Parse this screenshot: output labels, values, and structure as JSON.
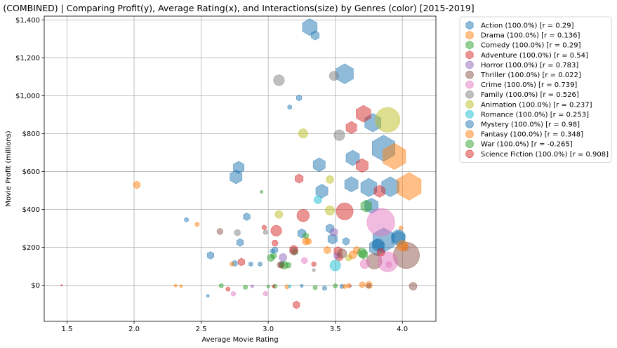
{
  "chart_data": {
    "type": "scatter",
    "title": "(COMBINED) | Comparing Profit(y), Average Rating(x), and Interactions(size) by Genres (color) [2015-2019]",
    "xlabel": "Average Movie Rating",
    "ylabel": "Movie Profit (millions)",
    "xlim": [
      1.33,
      4.25
    ],
    "ylim": [
      -190,
      1420
    ],
    "x_ticks": [
      {
        "value": 1.5,
        "label": "1.5"
      },
      {
        "value": 2.0,
        "label": "2.0"
      },
      {
        "value": 2.5,
        "label": "2.5"
      },
      {
        "value": 3.0,
        "label": "3.0"
      },
      {
        "value": 3.5,
        "label": "3.5"
      },
      {
        "value": 4.0,
        "label": "4.0"
      }
    ],
    "y_ticks": [
      {
        "value": 0,
        "label": "$0"
      },
      {
        "value": 200,
        "label": "$200"
      },
      {
        "value": 400,
        "label": "$400"
      },
      {
        "value": 600,
        "label": "$600"
      },
      {
        "value": 800,
        "label": "$800"
      },
      {
        "value": 1000,
        "label": "$1,000"
      },
      {
        "value": 1200,
        "label": "$1,200"
      },
      {
        "value": 1400,
        "label": "$1,400"
      }
    ],
    "grid": true,
    "legend_position": "outside-right",
    "series": [
      {
        "name": "Action (100.0%) [r = 0.29]",
        "color": "#1f77b4",
        "marker": "hexagon",
        "points": [
          {
            "x": 3.31,
            "y": 1362,
            "s": 11
          },
          {
            "x": 3.35,
            "y": 1318,
            "s": 6
          },
          {
            "x": 3.57,
            "y": 1116,
            "s": 13
          },
          {
            "x": 3.16,
            "y": 940,
            "s": 3
          },
          {
            "x": 3.23,
            "y": 989,
            "s": 4
          },
          {
            "x": 3.78,
            "y": 858,
            "s": 12
          },
          {
            "x": 3.86,
            "y": 723,
            "s": 17
          },
          {
            "x": 3.63,
            "y": 672,
            "s": 10
          },
          {
            "x": 3.38,
            "y": 636,
            "s": 9
          },
          {
            "x": 2.78,
            "y": 622,
            "s": 8
          },
          {
            "x": 2.76,
            "y": 572,
            "s": 9
          },
          {
            "x": 3.62,
            "y": 533,
            "s": 10
          },
          {
            "x": 3.75,
            "y": 516,
            "s": 12
          },
          {
            "x": 3.91,
            "y": 520,
            "s": 13
          },
          {
            "x": 3.4,
            "y": 497,
            "s": 9
          },
          {
            "x": 3.77,
            "y": 420,
            "s": 10
          },
          {
            "x": 2.84,
            "y": 362,
            "s": 5
          },
          {
            "x": 2.39,
            "y": 346,
            "s": 3
          },
          {
            "x": 3.46,
            "y": 300,
            "s": 6
          },
          {
            "x": 3.25,
            "y": 274,
            "s": 6
          },
          {
            "x": 3.48,
            "y": 245,
            "s": 7
          },
          {
            "x": 3.86,
            "y": 238,
            "s": 16
          },
          {
            "x": 3.97,
            "y": 247,
            "s": 10
          },
          {
            "x": 2.79,
            "y": 226,
            "s": 5
          },
          {
            "x": 3.58,
            "y": 232,
            "s": 5
          },
          {
            "x": 3.81,
            "y": 200,
            "s": 11
          },
          {
            "x": 2.57,
            "y": 158,
            "s": 5
          },
          {
            "x": 3.1,
            "y": 112,
            "s": 4
          },
          {
            "x": 2.75,
            "y": 116,
            "s": 4
          },
          {
            "x": 2.87,
            "y": 112,
            "s": 3
          },
          {
            "x": 2.94,
            "y": 112,
            "s": 3
          },
          {
            "x": 3.42,
            "y": -15,
            "s": 3
          },
          {
            "x": 3.55,
            "y": -6,
            "s": 3
          },
          {
            "x": 2.55,
            "y": -55,
            "s": 2
          },
          {
            "x": 3.03,
            "y": 180,
            "s": 3
          }
        ]
      },
      {
        "name": "Drama (100.0%) [r = 0.136]",
        "color": "#ff7f0e",
        "marker": "hexagon",
        "points": [
          {
            "x": 4.05,
            "y": 522,
            "s": 18
          },
          {
            "x": 3.94,
            "y": 680,
            "s": 17
          },
          {
            "x": 2.02,
            "y": 530,
            "s": 5
          },
          {
            "x": 2.47,
            "y": 322,
            "s": 3
          },
          {
            "x": 3.99,
            "y": 302,
            "s": 3
          },
          {
            "x": 3.44,
            "y": 186,
            "s": 5
          },
          {
            "x": 4.02,
            "y": 200,
            "s": 5
          },
          {
            "x": 3.66,
            "y": 185,
            "s": 5
          },
          {
            "x": 3.28,
            "y": 232,
            "s": 5
          },
          {
            "x": 2.73,
            "y": 112,
            "s": 3
          },
          {
            "x": 3.75,
            "y": 2,
            "s": 5
          },
          {
            "x": 2.31,
            "y": -2,
            "s": 2
          },
          {
            "x": 2.35,
            "y": -4,
            "s": 2
          },
          {
            "x": 3.57,
            "y": -6,
            "s": 3
          },
          {
            "x": 3.14,
            "y": -8,
            "s": 3
          },
          {
            "x": 3.7,
            "y": 3,
            "s": 4
          }
        ]
      },
      {
        "name": "Comedy (100.0%) [r = 0.29]",
        "color": "#2ca02c",
        "marker": "hexagon",
        "points": [
          {
            "x": 3.73,
            "y": 418,
            "s": 8
          },
          {
            "x": 3.28,
            "y": 262,
            "s": 4
          },
          {
            "x": 3.2,
            "y": 176,
            "s": 4
          },
          {
            "x": 3.04,
            "y": 155,
            "s": 4
          },
          {
            "x": 3.02,
            "y": 145,
            "s": 5
          },
          {
            "x": 3.71,
            "y": 163,
            "s": 6
          },
          {
            "x": 3.15,
            "y": 106,
            "s": 4
          },
          {
            "x": 2.95,
            "y": 493,
            "s": 2
          },
          {
            "x": 2.65,
            "y": -2,
            "s": 3
          },
          {
            "x": 3.5,
            "y": -3,
            "s": 3
          },
          {
            "x": 3.05,
            "y": -5,
            "s": 3
          },
          {
            "x": 2.83,
            "y": -10,
            "s": 3
          },
          {
            "x": 3.35,
            "y": -12,
            "s": 3
          }
        ]
      },
      {
        "name": "Adventure (100.0%) [r = 0.54]",
        "color": "#d62728",
        "marker": "hexagon",
        "points": [
          {
            "x": 3.71,
            "y": 905,
            "s": 11
          },
          {
            "x": 3.62,
            "y": 832,
            "s": 8
          },
          {
            "x": 3.7,
            "y": 632,
            "s": 9
          },
          {
            "x": 3.23,
            "y": 563,
            "s": 6
          },
          {
            "x": 3.83,
            "y": 496,
            "s": 8
          },
          {
            "x": 3.19,
            "y": 188,
            "s": 6
          },
          {
            "x": 3.52,
            "y": 180,
            "s": 6
          },
          {
            "x": 3.53,
            "y": 148,
            "s": 5
          },
          {
            "x": 2.8,
            "y": 123,
            "s": 5
          },
          {
            "x": 3.21,
            "y": -103,
            "s": 5
          },
          {
            "x": 2.7,
            "y": -20,
            "s": 3
          },
          {
            "x": 3.1,
            "y": 105,
            "s": 4
          },
          {
            "x": 3.04,
            "y": -5,
            "s": 2
          }
        ]
      },
      {
        "name": "Horror (100.0%) [r = 0.783]",
        "color": "#9467bd",
        "marker": "circle",
        "points": [
          {
            "x": 3.49,
            "y": 280,
            "s": 5
          },
          {
            "x": 3.11,
            "y": 147,
            "s": 5
          },
          {
            "x": 3.51,
            "y": 156,
            "s": 4
          },
          {
            "x": 2.88,
            "y": -5,
            "s": 2
          },
          {
            "x": 3.61,
            "y": -4,
            "s": 2
          }
        ]
      },
      {
        "name": "Thriller (100.0%) [r = 0.022]",
        "color": "#8c564b",
        "marker": "circle",
        "points": [
          {
            "x": 4.03,
            "y": 158,
            "s": 17
          },
          {
            "x": 3.79,
            "y": 127,
            "s": 10
          },
          {
            "x": 2.64,
            "y": 284,
            "s": 4
          },
          {
            "x": 3.55,
            "y": 168,
            "s": 6
          },
          {
            "x": 3.19,
            "y": 180,
            "s": 5
          },
          {
            "x": 4.08,
            "y": -5,
            "s": 5
          },
          {
            "x": 3.09,
            "y": 108,
            "s": 4
          },
          {
            "x": 3.75,
            "y": -3,
            "s": 3
          }
        ]
      },
      {
        "name": "Crime (100.0%) [r = 0.739]",
        "color": "#e377c2",
        "marker": "circle",
        "points": [
          {
            "x": 3.84,
            "y": 333,
            "s": 18
          },
          {
            "x": 3.89,
            "y": 124,
            "s": 13
          },
          {
            "x": 3.72,
            "y": 113,
            "s": 6
          },
          {
            "x": 3.27,
            "y": 131,
            "s": 4
          },
          {
            "x": 2.74,
            "y": -45,
            "s": 3
          },
          {
            "x": 2.98,
            "y": -44,
            "s": 3
          },
          {
            "x": 3.9,
            "y": 110,
            "s": 4
          }
        ]
      },
      {
        "name": "Family (100.0%) [r = 0.526]",
        "color": "#7f7f7f",
        "marker": "circle",
        "points": [
          {
            "x": 3.08,
            "y": 1082,
            "s": 7
          },
          {
            "x": 3.49,
            "y": 1105,
            "s": 6
          },
          {
            "x": 3.53,
            "y": 792,
            "s": 7
          },
          {
            "x": 2.77,
            "y": 278,
            "s": 4
          },
          {
            "x": 2.98,
            "y": 280,
            "s": 3
          },
          {
            "x": 3.34,
            "y": 80,
            "s": 2
          }
        ]
      },
      {
        "name": "Animation (100.0%) [r = 0.237]",
        "color": "#bcbd22",
        "marker": "circle",
        "points": [
          {
            "x": 3.89,
            "y": 873,
            "s": 16
          },
          {
            "x": 3.26,
            "y": 801,
            "s": 6
          },
          {
            "x": 3.46,
            "y": 558,
            "s": 5
          },
          {
            "x": 3.46,
            "y": 395,
            "s": 6
          },
          {
            "x": 3.08,
            "y": 374,
            "s": 5
          },
          {
            "x": 3.6,
            "y": 145,
            "s": 4
          }
        ]
      },
      {
        "name": "Romance (100.0%) [r = 0.253]",
        "color": "#17becf",
        "marker": "circle",
        "points": [
          {
            "x": 3.37,
            "y": 451,
            "s": 5
          },
          {
            "x": 3.5,
            "y": 105,
            "s": 7
          },
          {
            "x": 3.16,
            "y": -5,
            "s": 2
          }
        ]
      },
      {
        "name": "Mystery (100.0%) [r = 0.98]",
        "color": "#1f77b4",
        "marker": "circle",
        "points": [
          {
            "x": 3.97,
            "y": 256,
            "s": 9
          },
          {
            "x": 3.82,
            "y": 212,
            "s": 8
          },
          {
            "x": 3.05,
            "y": 186,
            "s": 4
          },
          {
            "x": 3.25,
            "y": -3,
            "s": 2
          }
        ]
      },
      {
        "name": "Fantasy (100.0%) [r = 0.348]",
        "color": "#ff7f0e",
        "marker": "circle",
        "points": [
          {
            "x": 4.0,
            "y": 209,
            "s": 7
          },
          {
            "x": 3.63,
            "y": 160,
            "s": 5
          },
          {
            "x": 3.3,
            "y": 232,
            "s": 4
          },
          {
            "x": 3.6,
            "y": -2,
            "s": 3
          }
        ]
      },
      {
        "name": "War (100.0%) [r = -0.265]",
        "color": "#2ca02c",
        "marker": "circle",
        "points": [
          {
            "x": 3.7,
            "y": 172,
            "s": 6
          },
          {
            "x": 3.12,
            "y": 106,
            "s": 5
          },
          {
            "x": 3.0,
            "y": -6,
            "s": 2
          }
        ]
      },
      {
        "name": "Science Fiction (100.0%) [r = 0.908]",
        "color": "#d62728",
        "marker": "circle",
        "points": [
          {
            "x": 3.57,
            "y": 390,
            "s": 11
          },
          {
            "x": 3.26,
            "y": 368,
            "s": 8
          },
          {
            "x": 3.06,
            "y": 288,
            "s": 7
          },
          {
            "x": 3.84,
            "y": 174,
            "s": 5
          },
          {
            "x": 3.05,
            "y": 223,
            "s": 4
          },
          {
            "x": 2.97,
            "y": 305,
            "s": 3
          },
          {
            "x": 3.34,
            "y": 112,
            "s": 3
          },
          {
            "x": 1.46,
            "y": 0,
            "s": 1
          }
        ]
      }
    ]
  }
}
